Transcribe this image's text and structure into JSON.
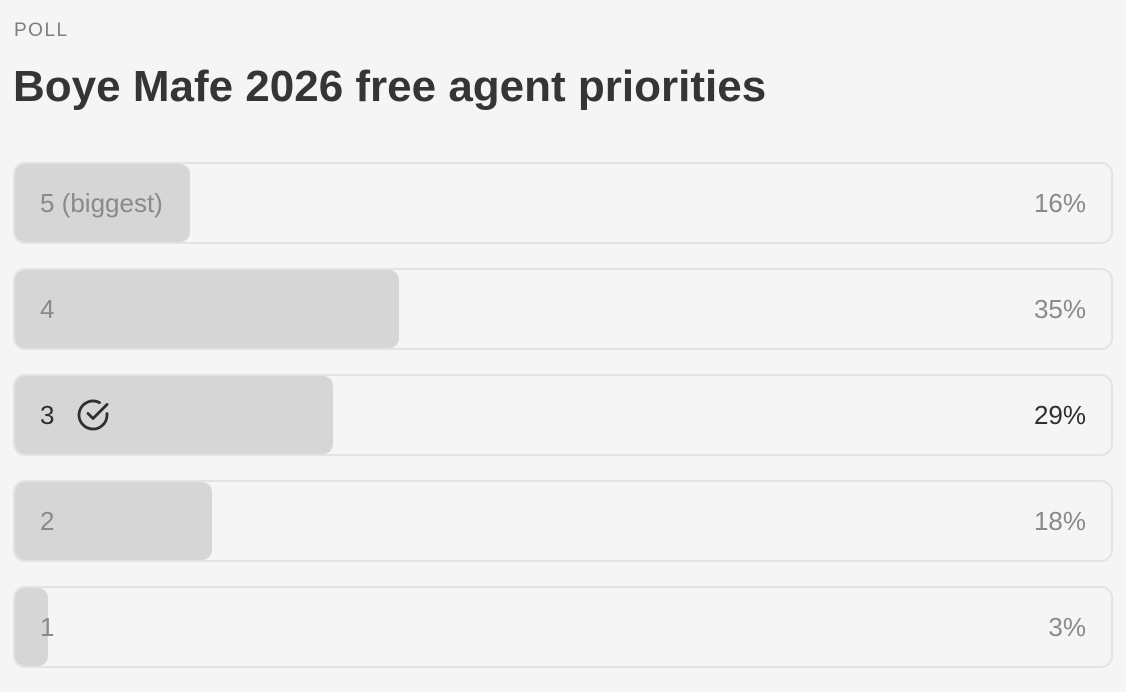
{
  "poll": {
    "label": "POLL",
    "title": "Boye Mafe 2026 free agent priorities",
    "options": [
      {
        "label": "5 (biggest)",
        "percent_text": "16%",
        "share": 0.16,
        "selected": false
      },
      {
        "label": "4",
        "percent_text": "35%",
        "share": 0.35,
        "selected": false
      },
      {
        "label": "3",
        "percent_text": "29%",
        "share": 0.29,
        "selected": true,
        "icon": "check-circle-icon"
      },
      {
        "label": "2",
        "percent_text": "18%",
        "share": 0.18,
        "selected": false
      },
      {
        "label": "1",
        "percent_text": "3%",
        "share": 0.03,
        "selected": false
      }
    ]
  },
  "colors": {
    "background": "#f5f5f5",
    "fill": "#d6d6d6",
    "border": "#e3e3e3",
    "muted_text": "#8a8a8a",
    "selected_text": "#2f2f2f",
    "title_text": "#353535"
  }
}
